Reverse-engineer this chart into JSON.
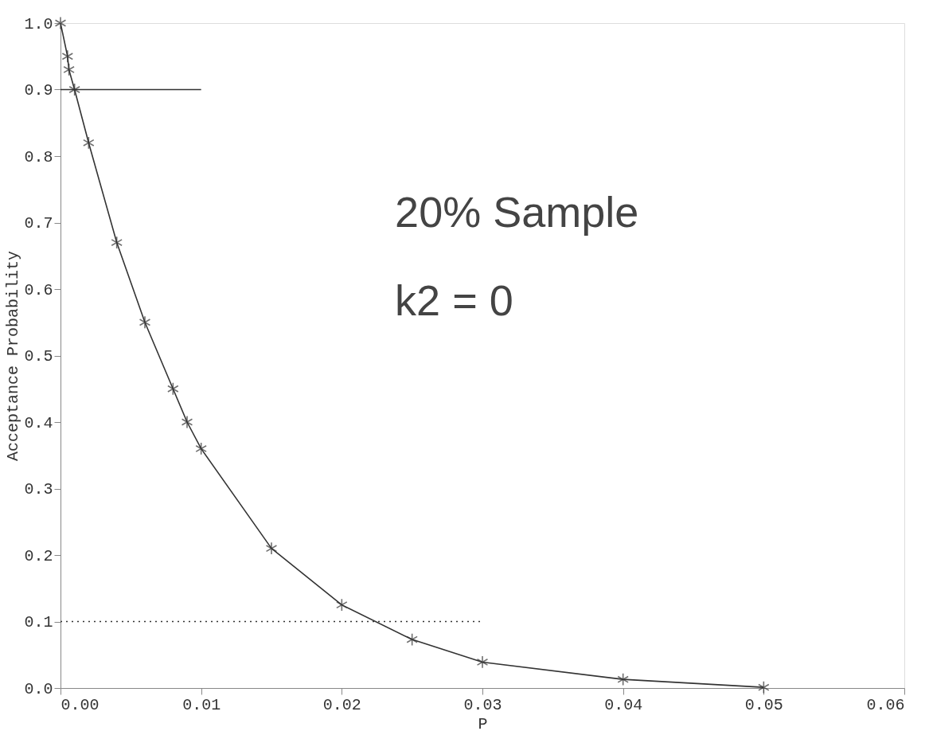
{
  "chart_data": {
    "type": "line",
    "xlabel": "P",
    "ylabel": "Acceptance Probability",
    "xlim": [
      0,
      0.06
    ],
    "xticks": [
      {
        "value": 0,
        "label": "0.00"
      },
      0.01,
      0.02,
      0.03,
      0.04,
      0.05,
      0.06
    ],
    "ylim": [
      0,
      1
    ],
    "yticks": [
      {
        "value": 0,
        "label": "0.0"
      },
      0.1,
      0.2,
      0.3,
      0.4,
      0.5,
      0.6,
      0.7,
      0.8,
      0.9,
      {
        "value": 1,
        "label": "1.0"
      }
    ],
    "grid": false,
    "annotations": [
      "20% Sample",
      "k2 = 0"
    ],
    "series": [
      {
        "color": "#333333",
        "marker": "cross",
        "line_style": "solid",
        "x": [
          0,
          0.0005,
          0.0006,
          0.001,
          0.002,
          0.004,
          0.006,
          0.008,
          0.009,
          0.01,
          0.015,
          0.02,
          0.025,
          0.03,
          0.04,
          0.05
        ],
        "values": [
          1.0,
          0.95,
          0.93,
          0.9,
          0.82,
          0.67,
          0.55,
          0.45,
          0.4,
          0.36,
          0.21,
          0.125,
          0.073,
          0.039,
          0.013,
          0.001
        ]
      },
      {
        "color": "#333333",
        "marker": "none",
        "line_style": "solid",
        "x": [
          0,
          0.01
        ],
        "values": [
          0.9,
          0.9
        ]
      },
      {
        "color": "#333333",
        "marker": "none",
        "line_style": "dotted",
        "x": [
          0,
          0.03
        ],
        "values": [
          0.1,
          0.1
        ]
      }
    ]
  }
}
